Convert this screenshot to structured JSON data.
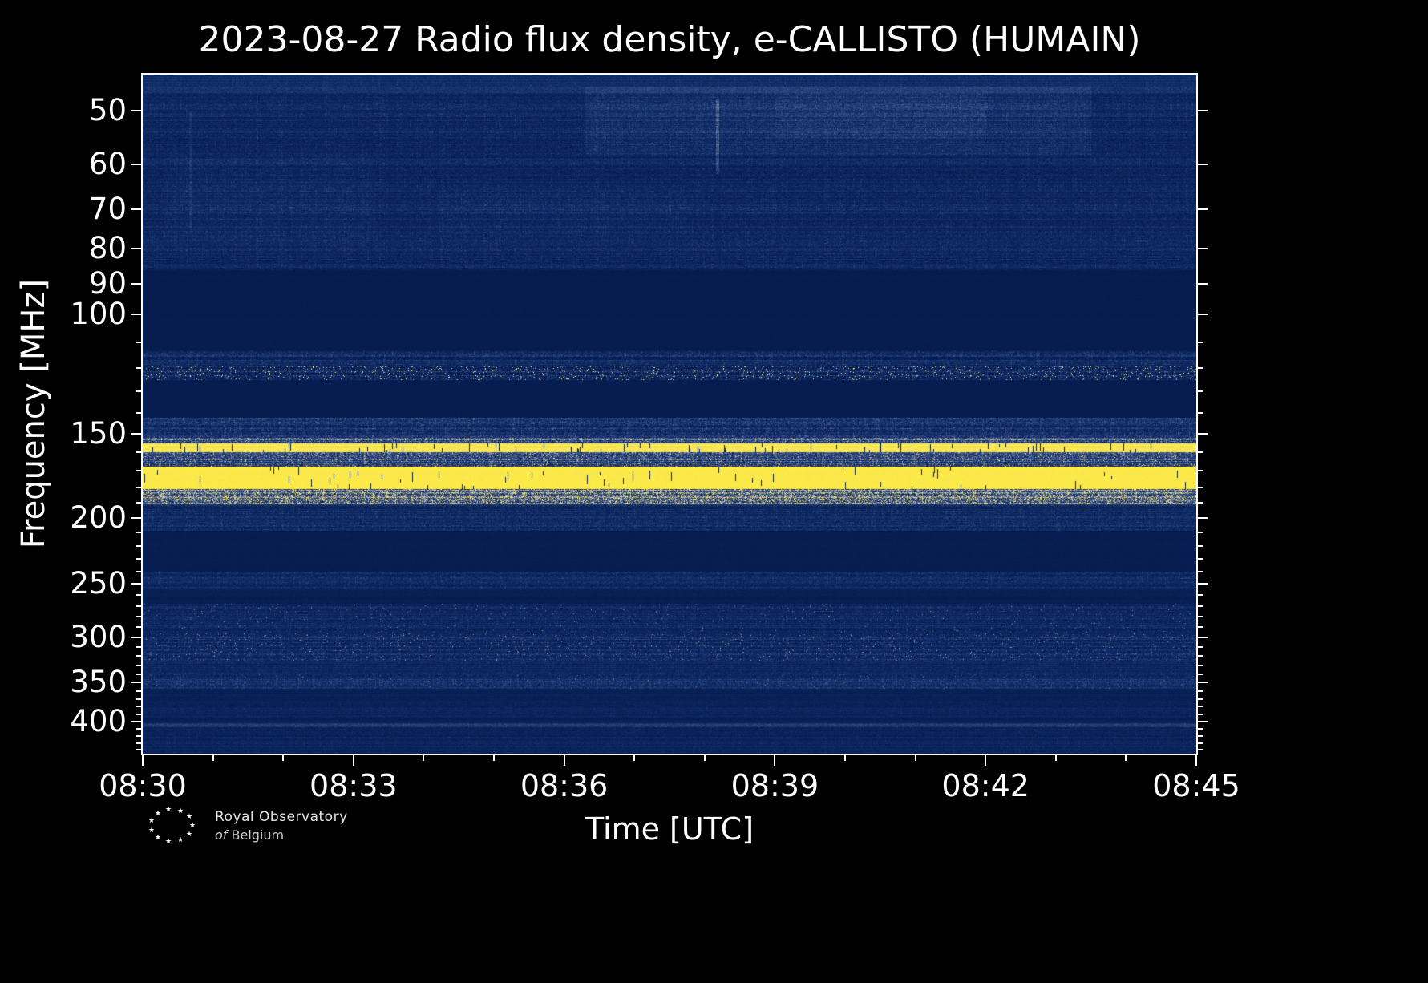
{
  "footer": {
    "logo": {
      "icon": "star-circle-icon",
      "line1": "Royal Observatory",
      "line2_italic": "of",
      "line2_rest": "Belgium"
    }
  },
  "chart_data": {
    "type": "heatmap",
    "title": "2023-08-27 Radio flux density, e-CALLISTO (HUMAIN)",
    "xlabel": "Time [UTC]",
    "ylabel": "Frequency [MHz]",
    "x_ticks": [
      "08:30",
      "08:33",
      "08:36",
      "08:39",
      "08:42",
      "08:45"
    ],
    "x_minor_per_major": 3,
    "x_range_minutes": [
      0,
      15
    ],
    "y_ticks": [
      50,
      60,
      70,
      80,
      90,
      100,
      150,
      200,
      250,
      300,
      350,
      400
    ],
    "y_scale": "log",
    "freq_range_mhz": [
      44.2,
      446
    ],
    "time_range_utc": [
      "08:30",
      "08:45"
    ],
    "axis_color": "#ffffff",
    "background_color": "#000000",
    "legend": "none",
    "grid": false,
    "colormap_stops": [
      [
        0.0,
        6,
        26,
        75
      ],
      [
        0.2,
        16,
        45,
        105
      ],
      [
        0.4,
        60,
        85,
        135
      ],
      [
        0.62,
        150,
        155,
        165
      ],
      [
        0.8,
        228,
        218,
        135
      ],
      [
        1.0,
        255,
        236,
        66
      ]
    ],
    "bands": [
      {
        "f_lo": 44,
        "f_hi": 47,
        "base": 0.18,
        "noise": 0.1,
        "label": "top edge noise strip"
      },
      {
        "f_lo": 47,
        "f_hi": 86,
        "base": 0.11,
        "noise": 0.15,
        "label": "broadband galactic/ionospheric noise 47-86 MHz"
      },
      {
        "f_lo": 86,
        "f_hi": 113,
        "base": 0.03,
        "noise": 0.02,
        "label": "blanked FM band"
      },
      {
        "f_lo": 113,
        "f_hi": 119,
        "base": 0.1,
        "noise": 0.2,
        "label": "weak RFI strip"
      },
      {
        "f_lo": 119,
        "f_hi": 125,
        "base": 0.12,
        "noise": 0.24,
        "speckle": {
          "p": 0.05,
          "v": 1.0
        },
        "label": "aviation band intermittent RFI"
      },
      {
        "f_lo": 125,
        "f_hi": 142,
        "base": 0.03,
        "noise": 0.02,
        "label": "quiet gap"
      },
      {
        "f_lo": 142,
        "f_hi": 152,
        "base": 0.15,
        "noise": 0.22,
        "label": "noise band"
      },
      {
        "f_lo": 152,
        "f_hi": 155,
        "base": 0.3,
        "noise": 0.35,
        "label": "moderate RFI"
      },
      {
        "f_lo": 155,
        "f_hi": 160,
        "base": 0.93,
        "noise": 0.1,
        "dropout": 0.05,
        "label": "strong RFI carrier ~157 MHz"
      },
      {
        "f_lo": 160,
        "f_hi": 168,
        "base": 0.24,
        "noise": 0.32,
        "speckle": {
          "p": 0.04,
          "v": 0.9
        },
        "label": "mixed RFI"
      },
      {
        "f_lo": 168,
        "f_hi": 181,
        "base": 0.97,
        "noise": 0.06,
        "dropout": 0.05,
        "label": "saturated RFI band ~170-180 MHz"
      },
      {
        "f_lo": 181,
        "f_hi": 191,
        "base": 0.36,
        "noise": 0.45,
        "speckle": {
          "p": 0.12,
          "v": 1.0
        },
        "label": "bursty RFI"
      },
      {
        "f_lo": 191,
        "f_hi": 209,
        "base": 0.13,
        "noise": 0.16,
        "label": "noise band"
      },
      {
        "f_lo": 209,
        "f_hi": 240,
        "base": 0.04,
        "noise": 0.03,
        "label": "quiet gap"
      },
      {
        "f_lo": 240,
        "f_hi": 254,
        "base": 0.13,
        "noise": 0.15,
        "label": "noise band ~250 MHz"
      },
      {
        "f_lo": 254,
        "f_hi": 268,
        "base": 0.05,
        "noise": 0.05,
        "label": "quiet gap"
      },
      {
        "f_lo": 268,
        "f_hi": 295,
        "base": 0.11,
        "noise": 0.14,
        "speckle": {
          "p": 0.015,
          "v": 0.6
        },
        "label": "noise with speckle"
      },
      {
        "f_lo": 295,
        "f_hi": 325,
        "base": 0.13,
        "noise": 0.17,
        "speckle": {
          "p": 0.025,
          "v": 0.65
        },
        "label": "speckled band ~300 MHz"
      },
      {
        "f_lo": 325,
        "f_hi": 340,
        "base": 0.1,
        "noise": 0.13,
        "label": "noise band"
      },
      {
        "f_lo": 340,
        "f_hi": 358,
        "base": 0.15,
        "noise": 0.17,
        "speckle": {
          "p": 0.01,
          "v": 0.55
        },
        "label": "noise band ~350 MHz"
      },
      {
        "f_lo": 358,
        "f_hi": 373,
        "base": 0.06,
        "noise": 0.06,
        "label": "quieter gap"
      },
      {
        "f_lo": 373,
        "f_hi": 396,
        "base": 0.08,
        "noise": 0.1,
        "label": "faint noise"
      },
      {
        "f_lo": 396,
        "f_hi": 402,
        "base": 0.05,
        "noise": 0.05,
        "label": "quiet strip"
      },
      {
        "f_lo": 402,
        "f_hi": 408,
        "base": 0.24,
        "noise": 0.1,
        "label": "carrier line ~405 MHz"
      },
      {
        "f_lo": 408,
        "f_hi": 446,
        "base": 0.09,
        "noise": 0.11,
        "label": "bottom noise"
      }
    ],
    "patches": [
      {
        "t": [
          0.42,
          0.9
        ],
        "f": [
          46,
          58
        ],
        "boost": 0.1,
        "label": "bright cloud 08:36-08:43 near 50 MHz"
      },
      {
        "t": [
          0.6,
          0.8
        ],
        "f": [
          47,
          55
        ],
        "boost": 0.06,
        "label": "brighter core of cloud"
      },
      {
        "t": [
          0.02,
          0.22
        ],
        "f": [
          58,
          78
        ],
        "boost": 0.04,
        "label": "faint enhancement early interval"
      },
      {
        "t": [
          0.28,
          0.52
        ],
        "f": [
          66,
          76
        ],
        "boost": 0.04,
        "label": "faint enhancement ~70 MHz"
      }
    ],
    "events": [
      {
        "t": 0.545,
        "f": [
          48,
          62
        ],
        "boost": 0.3,
        "w": 0.0015,
        "label": "narrow vertical streak ~08:38"
      },
      {
        "t": 0.045,
        "f": [
          50,
          75
        ],
        "boost": 0.12,
        "w": 0.0015,
        "label": "faint vertical streak ~08:30.7"
      }
    ]
  }
}
